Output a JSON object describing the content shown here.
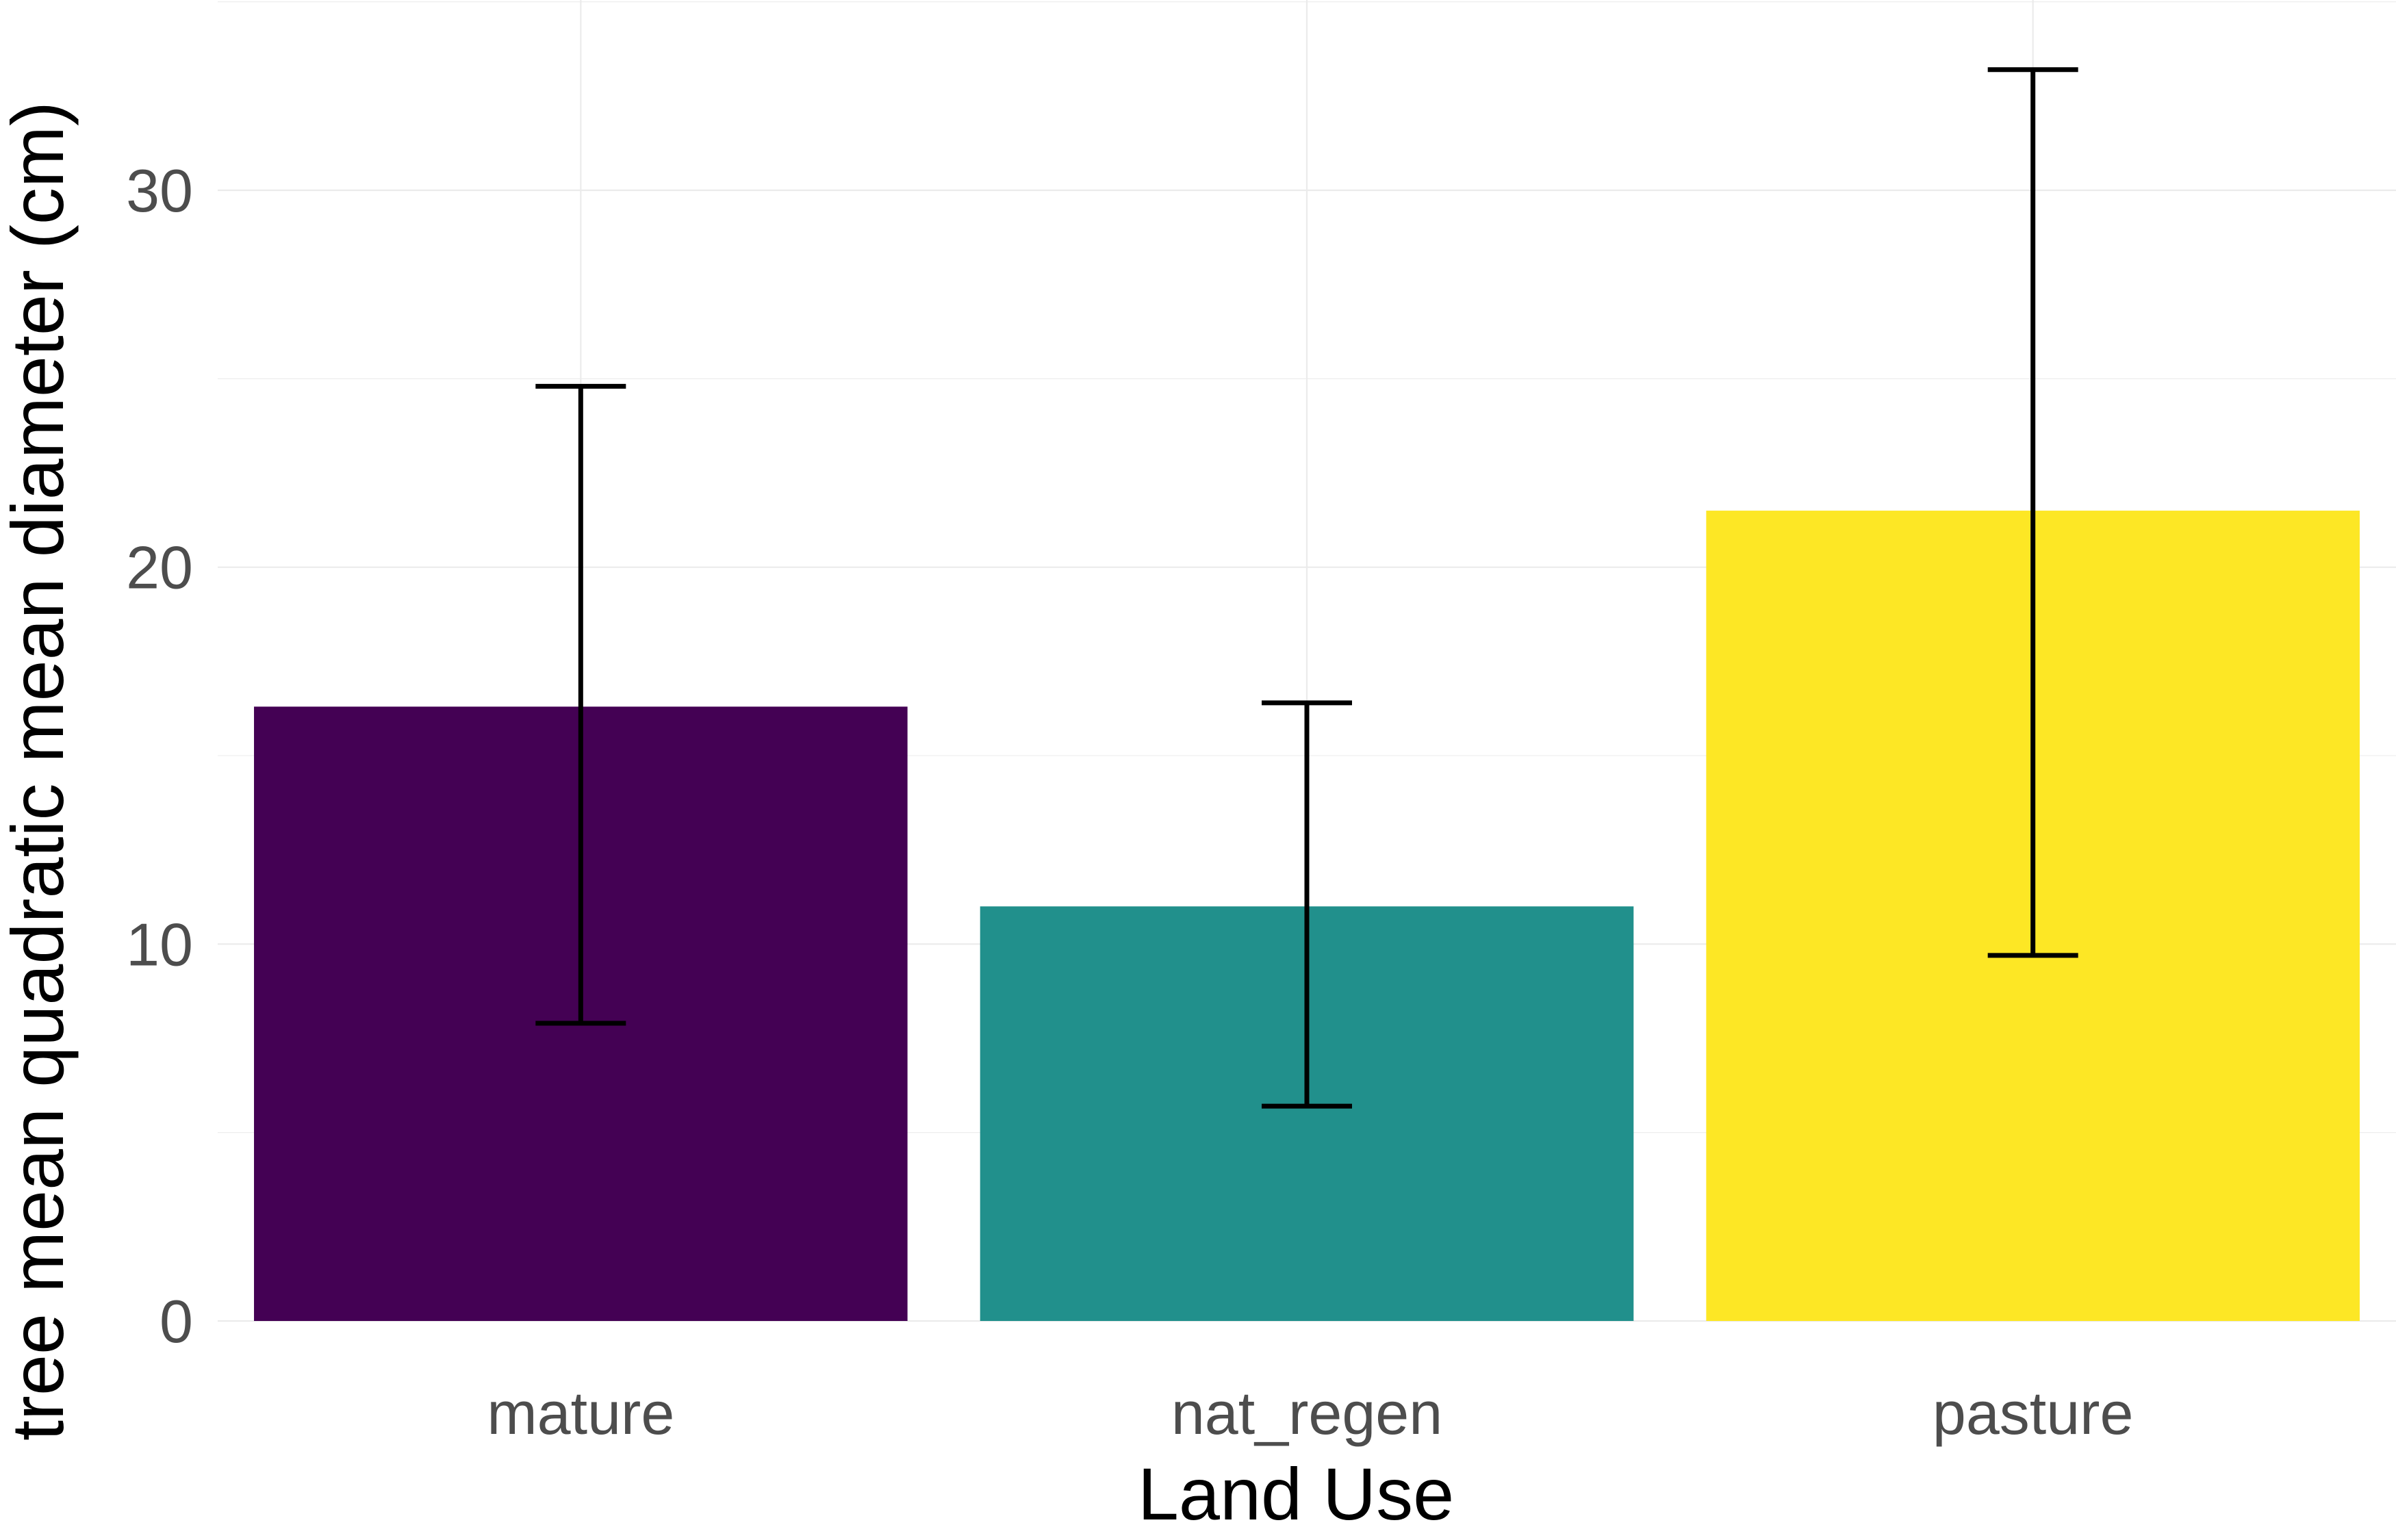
{
  "chart_data": {
    "type": "bar",
    "categories": [
      "mature",
      "nat_regen",
      "pasture"
    ],
    "values": [
      16.3,
      11.0,
      21.5
    ],
    "error_lower": [
      7.9,
      5.7,
      9.7
    ],
    "error_upper": [
      24.8,
      16.4,
      33.2
    ],
    "colors": [
      "#440154",
      "#21908C",
      "#FDE725"
    ],
    "xlabel": "Land Use",
    "ylabel": "tree mean quadratic mean diameter (cm)",
    "ylim": [
      0,
      35
    ],
    "yticks": [
      0,
      10,
      20,
      30
    ],
    "grid": true,
    "legend": "none"
  }
}
